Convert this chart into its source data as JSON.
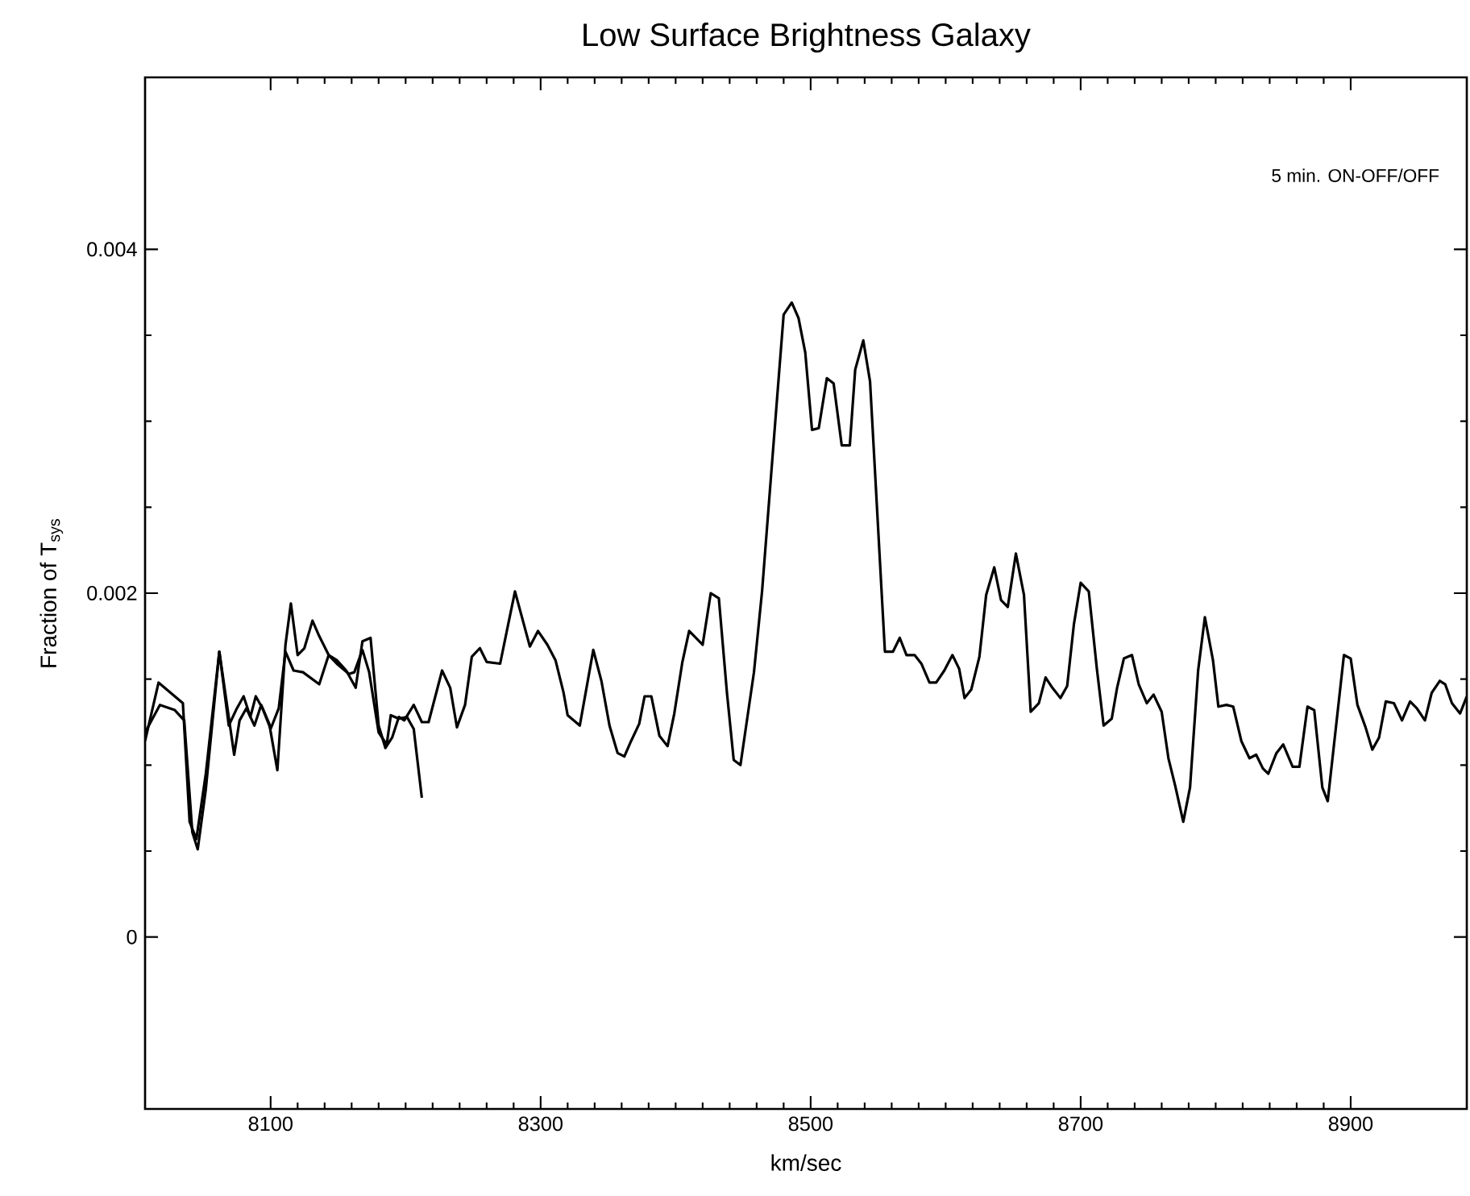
{
  "chart_data": {
    "type": "line",
    "title": "Low Surface Brightness Galaxy",
    "xlabel": "km/sec",
    "ylabel": "Fraction of T$_{sys}$",
    "annotations": [
      "5 min. ON-OFF/OFF"
    ],
    "xlim": [
      8007,
      8986
    ],
    "ylim": [
      -0.001,
      0.005
    ],
    "xticks": [
      8100,
      8300,
      8500,
      8700,
      8900
    ],
    "yticks": [
      0,
      0.002,
      0.004
    ],
    "series": [
      {
        "color": "#000000",
        "x": [
          8007,
          8017,
          8026,
          8035,
          8040,
          8045,
          8052,
          8062,
          8073,
          8077,
          8082,
          8088,
          8093,
          8099,
          8105,
          8111,
          8115,
          8120,
          8125,
          8131,
          8136,
          8143,
          8149,
          8156,
          8163,
          8168,
          8174,
          8180,
          8185,
          8190,
          8195,
          8199,
          8206,
          8212,
          8217,
          8227,
          8233,
          8238,
          8244,
          8249,
          8255,
          8260,
          8270,
          8276,
          8281,
          8292,
          8298,
          8305,
          8311,
          8317,
          8320,
          8329,
          8339,
          8345,
          8351,
          8357,
          8362,
          8367,
          8373,
          8377,
          8382,
          8388,
          8394,
          8399,
          8405,
          8410,
          8420,
          8426,
          8432,
          8438,
          8443,
          8448,
          8458,
          8464,
          8475,
          8480,
          8486,
          8491,
          8496,
          8501,
          8506,
          8512,
          8517,
          8523,
          8529,
          8533,
          8539,
          8544,
          8555,
          8561,
          8566,
          8571,
          8577,
          8582,
          8588,
          8593,
          8599,
          8605,
          8610,
          8614,
          8619,
          8625,
          8630,
          8636,
          8641,
          8646,
          8652,
          8658,
          8663,
          8669,
          8674,
          8679,
          8685,
          8690,
          8695,
          8700,
          8706,
          8712,
          8717,
          8723,
          8727,
          8732,
          8738,
          8743,
          8749,
          8754,
          8760,
          8765,
          8770,
          8776,
          8781,
          8787,
          8792,
          8798,
          8802,
          8808,
          8813,
          8819,
          8825,
          8830,
          8835,
          8839,
          8845,
          8850,
          8857,
          8862,
          8868,
          8873,
          8879,
          8883,
          8895,
          8900,
          8905,
          8911,
          8916,
          8921,
          8926,
          8932,
          8938,
          8944,
          8949,
          8955,
          8960,
          8966,
          8970,
          8975,
          8981,
          8986
        ],
        "values": [
          0.00114,
          0.00148,
          0.00142,
          0.00136,
          0.00067,
          0.00057,
          0.00095,
          0.00166,
          0.00106,
          0.00126,
          0.00133,
          0.00123,
          0.00135,
          0.00124,
          0.00097,
          0.0017,
          0.00194,
          0.00164,
          0.00168,
          0.00184,
          0.00175,
          0.00164,
          0.00161,
          0.00155,
          0.00145,
          0.00172,
          0.00174,
          0.00123,
          0.0011,
          0.00116,
          0.00128,
          0.00126,
          0.00135,
          0.00125,
          0.00125,
          0.00155,
          0.00145,
          0.00122,
          0.00135,
          0.00163,
          0.00168,
          0.0016,
          0.00159,
          0.00182,
          0.00201,
          0.00169,
          0.00178,
          0.0017,
          0.00161,
          0.00142,
          0.00129,
          0.00123,
          0.00167,
          0.00149,
          0.00123,
          0.00107,
          0.00105,
          0.00114,
          0.00124,
          0.0014,
          0.0014,
          0.00117,
          0.00111,
          0.0013,
          0.0016,
          0.00178,
          0.0017,
          0.002,
          0.00197,
          0.00142,
          0.00103,
          0.001,
          0.00154,
          0.00201,
          0.00312,
          0.00362,
          0.00369,
          0.0036,
          0.0034,
          0.00295,
          0.00296,
          0.00325,
          0.00322,
          0.00286,
          0.00286,
          0.0033,
          0.00347,
          0.00323,
          0.00166,
          0.00166,
          0.00174,
          0.00164,
          0.00164,
          0.00159,
          0.00148,
          0.00148,
          0.00155,
          0.00164,
          0.00156,
          0.00139,
          0.00144,
          0.00163,
          0.00199,
          0.00215,
          0.00196,
          0.00192,
          0.00223,
          0.00199,
          0.00131,
          0.00136,
          0.00151,
          0.00145,
          0.00139,
          0.00146,
          0.00182,
          0.00206,
          0.00201,
          0.00156,
          0.00123,
          0.00127,
          0.00145,
          0.00162,
          0.00164,
          0.00147,
          0.00136,
          0.00141,
          0.00131,
          0.00104,
          0.00088,
          0.00067,
          0.00087,
          0.00155,
          0.00186,
          0.00161,
          0.00134,
          0.00135,
          0.00134,
          0.00114,
          0.00104,
          0.00106,
          0.00098,
          0.00095,
          0.00107,
          0.00112,
          0.00099,
          0.00099,
          0.00134,
          0.00132,
          0.00087,
          0.00079,
          0.00164,
          0.00162,
          0.00135,
          0.00122,
          0.00109,
          0.00116,
          0.00137,
          0.00136,
          0.00126,
          0.00137,
          0.00133,
          0.00126,
          0.00142,
          0.00149,
          0.00147,
          0.00136,
          0.0013,
          0.0014
        ]
      },
      {
        "color": "#000000",
        "x": [
          8007,
          8018,
          8029,
          8036,
          8042,
          8046,
          8052,
          8062,
          8069,
          8075,
          8080,
          8085,
          8089,
          8094,
          8100,
          8106,
          8111,
          8117,
          8124,
          8136,
          8143,
          8149,
          8158,
          8162,
          8168,
          8173,
          8180,
          8186,
          8189,
          8195,
          8201,
          8206,
          8212
        ],
        "values": [
          0.00119,
          0.00135,
          0.00132,
          0.00126,
          0.00061,
          0.00051,
          0.00086,
          0.00166,
          0.00123,
          0.00133,
          0.0014,
          0.00128,
          0.0014,
          0.00133,
          0.00121,
          0.00133,
          0.00166,
          0.00155,
          0.00154,
          0.00147,
          0.00164,
          0.00159,
          0.00153,
          0.00154,
          0.00167,
          0.00154,
          0.00119,
          0.00112,
          0.00129,
          0.00127,
          0.00128,
          0.00121,
          0.00081
        ]
      }
    ]
  }
}
